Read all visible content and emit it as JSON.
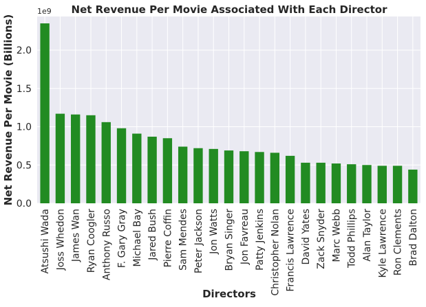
{
  "chart_data": {
    "type": "bar",
    "title": "Net Revenue Per Movie Associated With Each Director",
    "xlabel": "Directors",
    "ylabel": "Net Revenue Per Movie (Billions)",
    "y_scale_label": "1e9",
    "categories": [
      "Atsushi Wada",
      "Joss Whedon",
      "James Wan",
      "Ryan Coogler",
      "Anthony Russo",
      "F. Gary Gray",
      "Michael Bay",
      "Jared Bush",
      "Pierre Coffin",
      "Sam Mendes",
      "Peter Jackson",
      "Jon Watts",
      "Bryan Singer",
      "Jon Favreau",
      "Patty Jenkins",
      "Christopher Nolan",
      "Francis Lawrence",
      "David Yates",
      "Zack Snyder",
      "Marc Webb",
      "Todd Phillips",
      "Alan Taylor",
      "Kyle Lawrence",
      "Ron Clements",
      "Brad Dalton"
    ],
    "values": [
      2.35,
      1.17,
      1.16,
      1.15,
      1.06,
      0.98,
      0.91,
      0.87,
      0.85,
      0.74,
      0.72,
      0.71,
      0.69,
      0.68,
      0.67,
      0.66,
      0.62,
      0.53,
      0.53,
      0.52,
      0.51,
      0.5,
      0.49,
      0.49,
      0.44
    ],
    "ylim": [
      0,
      2.44
    ],
    "yticks": [
      "0.0",
      "0.5",
      "1.0",
      "1.5",
      "2.0"
    ],
    "grid": true,
    "bar_color": "#228b22",
    "background_color": "#eaeaf2",
    "grid_color": "#ffffff"
  }
}
